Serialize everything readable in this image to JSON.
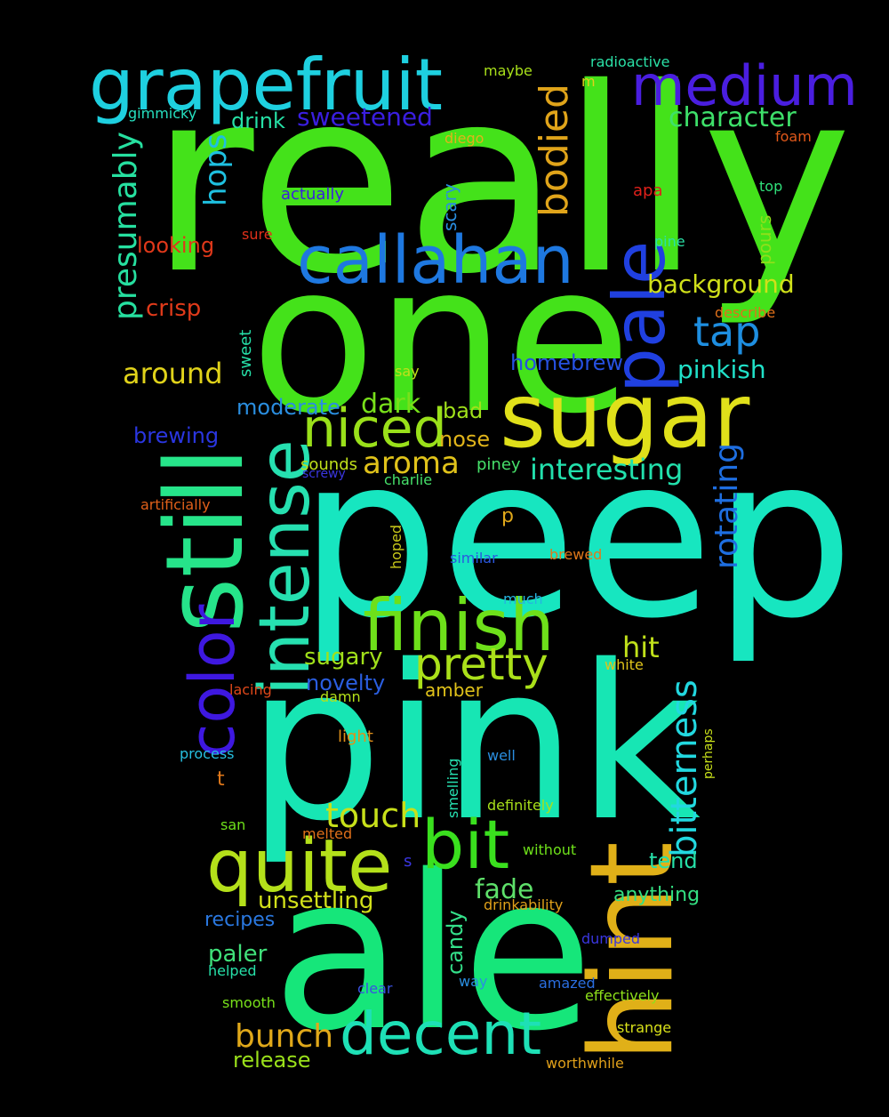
{
  "words": [
    {
      "text": "really",
      "color": "#44e21a"
    },
    {
      "text": "one",
      "color": "#44e21a"
    },
    {
      "text": "peep",
      "color": "#17e6c0"
    },
    {
      "text": "pink",
      "color": "#17e6b4"
    },
    {
      "text": "ale",
      "color": "#16e67a"
    },
    {
      "text": "hint",
      "color": "#e0b018"
    },
    {
      "text": "still",
      "color": "#26e48a"
    },
    {
      "text": "grapefruit",
      "color": "#1ed0e0"
    },
    {
      "text": "medium",
      "color": "#4a1ee0"
    },
    {
      "text": "callahan",
      "color": "#1e78e0"
    },
    {
      "text": "sugar",
      "color": "#e0e01a"
    },
    {
      "text": "pale",
      "color": "#2040e0"
    },
    {
      "text": "color",
      "color": "#3e18e0"
    },
    {
      "text": "intense",
      "color": "#26e0b0"
    },
    {
      "text": "finish",
      "color": "#6ee01a"
    },
    {
      "text": "niced",
      "color": "#9ae01a"
    },
    {
      "text": "quite",
      "color": "#b4e01a"
    },
    {
      "text": "bit",
      "color": "#3ae01e"
    },
    {
      "text": "decent",
      "color": "#1ee0b6"
    },
    {
      "text": "pretty",
      "color": "#aae01a"
    },
    {
      "text": "bitterness",
      "color": "#22d8e0"
    },
    {
      "text": "bodied",
      "color": "#e0a41a"
    },
    {
      "text": "presumably",
      "color": "#26e0a0"
    },
    {
      "text": "hops",
      "color": "#1ec0e0"
    },
    {
      "text": "rotating",
      "color": "#1e6ee0"
    },
    {
      "text": "tap",
      "color": "#1e8ee0"
    },
    {
      "text": "touch",
      "color": "#c8e01a"
    },
    {
      "text": "bunch",
      "color": "#e0a81a"
    },
    {
      "text": "aroma",
      "color": "#e0c21a"
    },
    {
      "text": "sweetened",
      "color": "#3a1ee0"
    },
    {
      "text": "character",
      "color": "#3ee06a"
    },
    {
      "text": "background",
      "color": "#d0e01a"
    },
    {
      "text": "around",
      "color": "#e0d21a"
    },
    {
      "text": "pinkish",
      "color": "#20e0c8"
    },
    {
      "text": "interesting",
      "color": "#22e0ac"
    },
    {
      "text": "dark",
      "color": "#78e01a"
    },
    {
      "text": "hit",
      "color": "#c0e01a"
    },
    {
      "text": "fade",
      "color": "#5ee06a"
    },
    {
      "text": "drink",
      "color": "#26e0a6"
    },
    {
      "text": "looking",
      "color": "#e0381a"
    },
    {
      "text": "crisp",
      "color": "#e03a1a"
    },
    {
      "text": "moderate",
      "color": "#2a8ee0"
    },
    {
      "text": "homebrew",
      "color": "#2650e0"
    },
    {
      "text": "brewing",
      "color": "#2a36e0"
    },
    {
      "text": "bad",
      "color": "#a0e01a"
    },
    {
      "text": "nose",
      "color": "#e0b41a"
    },
    {
      "text": "sugary",
      "color": "#a0e01a"
    },
    {
      "text": "novelty",
      "color": "#2a5ee0"
    },
    {
      "text": "unsettling",
      "color": "#d2e01a"
    },
    {
      "text": "paler",
      "color": "#40e07a"
    },
    {
      "text": "release",
      "color": "#9ae01a"
    },
    {
      "text": "candy",
      "color": "#34e08a"
    },
    {
      "text": "tend",
      "color": "#26e0a8"
    },
    {
      "text": "anything",
      "color": "#34e082"
    },
    {
      "text": "recipes",
      "color": "#2a78e0"
    },
    {
      "text": "amber",
      "color": "#e0c21a"
    },
    {
      "text": "gimmicky",
      "color": "#26e0c0"
    },
    {
      "text": "maybe",
      "color": "#a8e01a"
    },
    {
      "text": "radioactive",
      "color": "#2ae0a6"
    },
    {
      "text": "m",
      "color": "#e0d21a"
    },
    {
      "text": "diego",
      "color": "#e0b41a"
    },
    {
      "text": "foam",
      "color": "#e0581a"
    },
    {
      "text": "actually",
      "color": "#3a1ee0"
    },
    {
      "text": "apa",
      "color": "#e0201a"
    },
    {
      "text": "top",
      "color": "#30e07a"
    },
    {
      "text": "scary",
      "color": "#2a8ee0"
    },
    {
      "text": "sure",
      "color": "#e0301a"
    },
    {
      "text": "pine",
      "color": "#2ae0a6"
    },
    {
      "text": "pours",
      "color": "#8ee01a"
    },
    {
      "text": "describe",
      "color": "#e0701a"
    },
    {
      "text": "say",
      "color": "#c0e01a"
    },
    {
      "text": "sweet",
      "color": "#26e0a8"
    },
    {
      "text": "sounds",
      "color": "#c0e01a"
    },
    {
      "text": "screwy",
      "color": "#3a36e0"
    },
    {
      "text": "charlie",
      "color": "#46e06a"
    },
    {
      "text": "piney",
      "color": "#46e06a"
    },
    {
      "text": "artificially",
      "color": "#e0601a"
    },
    {
      "text": "p",
      "color": "#e0a81a"
    },
    {
      "text": "hoped",
      "color": "#c8c81a"
    },
    {
      "text": "similar",
      "color": "#2a58e0"
    },
    {
      "text": "brewed",
      "color": "#e0781a"
    },
    {
      "text": "much",
      "color": "#26b4e0"
    },
    {
      "text": "white",
      "color": "#e0c41a"
    },
    {
      "text": "lacing",
      "color": "#e0481a"
    },
    {
      "text": "damn",
      "color": "#b4e01a"
    },
    {
      "text": "light",
      "color": "#e0901a"
    },
    {
      "text": "process",
      "color": "#26c0e0"
    },
    {
      "text": "well",
      "color": "#2a8ee0"
    },
    {
      "text": "perhaps",
      "color": "#c8e01a"
    },
    {
      "text": "smelling",
      "color": "#26e0b0"
    },
    {
      "text": "t",
      "color": "#e0781a"
    },
    {
      "text": "definitely",
      "color": "#a8e01a"
    },
    {
      "text": "san",
      "color": "#6ee01a"
    },
    {
      "text": "melted",
      "color": "#e0701a"
    },
    {
      "text": "without",
      "color": "#6ee01a"
    },
    {
      "text": "s",
      "color": "#3a36e0"
    },
    {
      "text": "drinkability",
      "color": "#e0a01a"
    },
    {
      "text": "dumped",
      "color": "#3a36e0"
    },
    {
      "text": "helped",
      "color": "#26e0a8"
    },
    {
      "text": "clear",
      "color": "#3a50e0"
    },
    {
      "text": "way",
      "color": "#2a8ee0"
    },
    {
      "text": "amazed",
      "color": "#2a6ee0"
    },
    {
      "text": "effectively",
      "color": "#8ee01a"
    },
    {
      "text": "smooth",
      "color": "#78e01a"
    },
    {
      "text": "strange",
      "color": "#d8e01a"
    },
    {
      "text": "worthwhile",
      "color": "#e0a01a"
    }
  ]
}
